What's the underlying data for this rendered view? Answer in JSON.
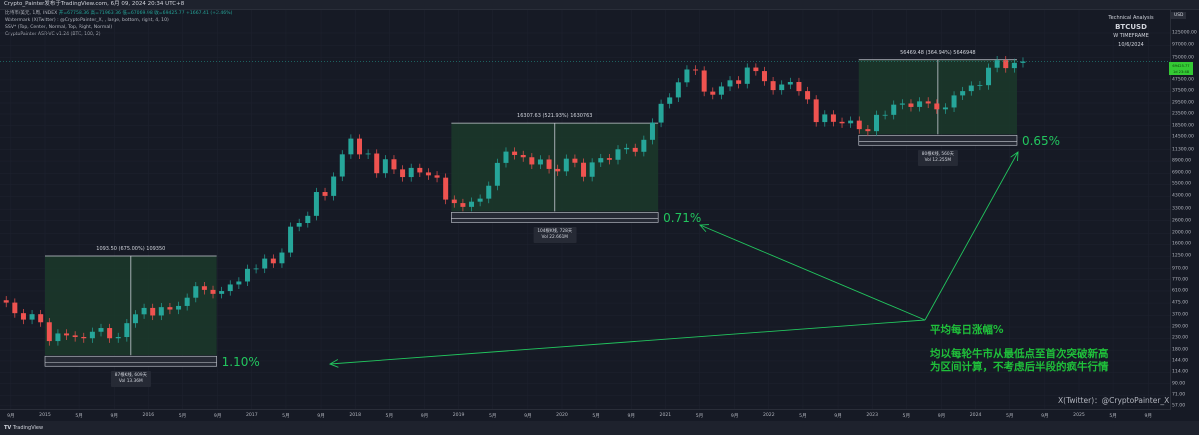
{
  "header": {
    "publish_line": "Crypto_Painter发布于TradingView.com, 6月 09, 2024 20:34 UTC+8",
    "symbol_line": "比特币/美元, 1周, INDEX",
    "ohlc": "开=67758.36 高=71963.36 低=67069.98 收=69425.77 +1667.41 (+2.46%)",
    "indicators": [
      "Watermark (X(Twitter) : @CryptoPainter_X, , large, bottom, right, 4, 10)",
      "SSV* (Top, Center, Normal, Top, Right, Normal)",
      "CryptoPainter ASR-VC v1.24 (BTC, 100, 2)"
    ]
  },
  "technical_analysis": {
    "title": "Technical Analysis",
    "symbol": "BTCUSD",
    "timeframe": "W TIMEFRAME",
    "date": "10/6/2024"
  },
  "price_axis": {
    "currency": "USD",
    "current_price": "69425.77",
    "countdown": "1d 23:48",
    "ticks": [
      "125000.00",
      "97000.00",
      "75000.00",
      "47500.00",
      "37500.00",
      "29500.00",
      "23500.00",
      "18500.00",
      "14500.00",
      "11300.00",
      "8900.00",
      "6900.00",
      "5500.00",
      "4300.00",
      "3300.00",
      "2600.00",
      "2000.00",
      "1600.00",
      "1250.00",
      "970.00",
      "770.00",
      "610.00",
      "475.00",
      "370.00",
      "290.00",
      "230.00",
      "180.00",
      "144.00",
      "114.00",
      "90.00",
      "71.00",
      "57.00"
    ]
  },
  "time_axis": {
    "ticks": [
      {
        "label": "9月",
        "date": 2014.67
      },
      {
        "label": "2015",
        "date": 2015.0
      },
      {
        "label": "5月",
        "date": 2015.33
      },
      {
        "label": "9月",
        "date": 2015.67
      },
      {
        "label": "2016",
        "date": 2016.0
      },
      {
        "label": "5月",
        "date": 2016.33
      },
      {
        "label": "9月",
        "date": 2016.67
      },
      {
        "label": "2017",
        "date": 2017.0
      },
      {
        "label": "5月",
        "date": 2017.33
      },
      {
        "label": "9月",
        "date": 2017.67
      },
      {
        "label": "2018",
        "date": 2018.0
      },
      {
        "label": "5月",
        "date": 2018.33
      },
      {
        "label": "9月",
        "date": 2018.67
      },
      {
        "label": "2019",
        "date": 2019.0
      },
      {
        "label": "5月",
        "date": 2019.33
      },
      {
        "label": "9月",
        "date": 2019.67
      },
      {
        "label": "2020",
        "date": 2020.0
      },
      {
        "label": "5月",
        "date": 2020.33
      },
      {
        "label": "9月",
        "date": 2020.67
      },
      {
        "label": "2021",
        "date": 2021.0
      },
      {
        "label": "5月",
        "date": 2021.33
      },
      {
        "label": "9月",
        "date": 2021.67
      },
      {
        "label": "2022",
        "date": 2022.0
      },
      {
        "label": "5月",
        "date": 2022.33
      },
      {
        "label": "9月",
        "date": 2022.67
      },
      {
        "label": "2023",
        "date": 2023.0
      },
      {
        "label": "5月",
        "date": 2023.33
      },
      {
        "label": "9月",
        "date": 2023.67
      },
      {
        "label": "2024",
        "date": 2024.0
      },
      {
        "label": "5月",
        "date": 2024.33
      },
      {
        "label": "9月",
        "date": 2024.67
      },
      {
        "label": "2025",
        "date": 2025.0
      },
      {
        "label": "5月",
        "date": 2025.33
      },
      {
        "label": "9月",
        "date": 2025.67
      }
    ]
  },
  "chart_data": {
    "type": "candlestick",
    "title": "",
    "y_scale": "log",
    "ylim": [
      50,
      140000
    ],
    "xlim": [
      2014.6,
      2025.8
    ],
    "grid": true,
    "colors": {
      "up": "#26a69a",
      "down": "#ef5350",
      "range_fill": "#1b3a2a",
      "annotation": "#22c55e"
    },
    "series_start": "2014-08",
    "monthly_close": [
      480,
      386,
      338,
      378,
      320,
      217,
      254,
      244,
      236,
      230,
      263,
      284,
      230,
      236,
      314,
      377,
      430,
      368,
      437,
      416,
      448,
      531,
      673,
      624,
      575,
      609,
      698,
      742,
      963,
      970,
      1190,
      1080,
      1348,
      2300,
      2480,
      2875,
      4700,
      4340,
      6470,
      10230,
      14150,
      10220,
      10400,
      6930,
      9240,
      7500,
      6400,
      7730,
      7040,
      6630,
      6320,
      4020,
      3740,
      3460,
      3850,
      4100,
      5350,
      8570,
      10820,
      10090,
      9630,
      8300,
      9200,
      7570,
      7200,
      9350,
      8600,
      6440,
      8660,
      9460,
      9140,
      11350,
      11680,
      10780,
      13800,
      19700,
      29000,
      33100,
      45200,
      58900,
      57700,
      37300,
      35000,
      41500,
      47100,
      43800,
      61300,
      57000,
      46300,
      38500,
      43200,
      45500,
      37700,
      31800,
      19900,
      23300,
      20000,
      19400,
      20500,
      17200,
      16500,
      23100,
      23100,
      28500,
      29200,
      27200,
      30500,
      29200,
      25900,
      26900,
      34500,
      37700,
      42300,
      42600,
      61100,
      71300,
      60600,
      67500,
      69425.77
    ],
    "ranges": [
      {
        "label": "1093.50 (675.00%) 109350",
        "from": 2015.0,
        "to": 2016.66,
        "low": 162,
        "high": 1255,
        "bars": "87根K线, 609天",
        "vol": "Vol 13.36M",
        "daily_pct": "1.10%"
      },
      {
        "label": "16307.63 (521.93%) 1630763",
        "from": 2018.93,
        "to": 2020.93,
        "low": 3150,
        "high": 19460,
        "bars": "104根K线, 728天",
        "vol": "Vol 22.661M",
        "daily_pct": "0.71%"
      },
      {
        "label": "56469.48 (364.94%) 5646948",
        "from": 2022.87,
        "to": 2024.4,
        "low": 15470,
        "high": 71940,
        "bars": "80根K线, 560天",
        "vol": "Vol 12.255M",
        "daily_pct": "0.65%"
      }
    ],
    "annotation": {
      "heading": "平均每日涨幅%",
      "line1": "均以每轮牛市从最低点至首次突破新高",
      "line2": "为区间计算，不考虑后半段的疯牛行情"
    }
  },
  "watermark": "X(Twitter)：@CryptoPainter_X",
  "footer": {
    "brand": "TradingView"
  }
}
